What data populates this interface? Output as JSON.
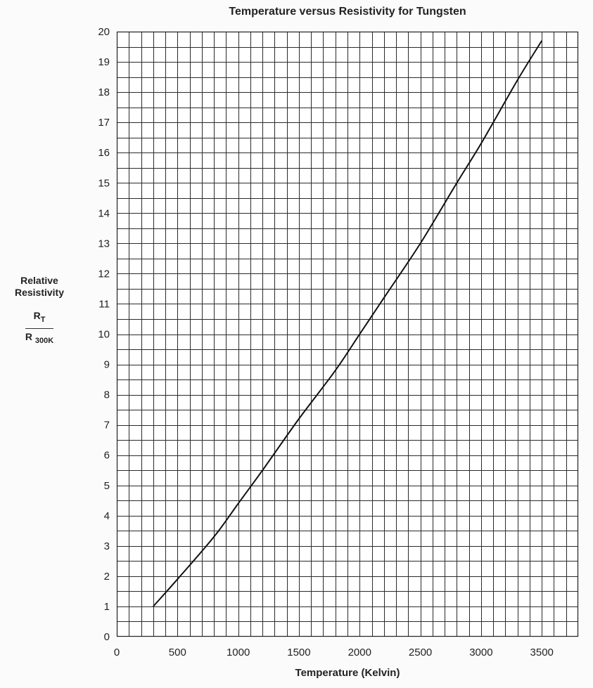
{
  "chart_data": {
    "type": "line",
    "title": "Temperature versus Resistivity for Tungsten",
    "xlabel": "Temperature (Kelvin)",
    "ylabel": {
      "line1": "Relative",
      "line2": "Resistivity",
      "numerator_main": "R",
      "numerator_sub": "T",
      "denominator_main": "R",
      "denominator_sub": "300K"
    },
    "xlim": [
      0,
      3800
    ],
    "ylim": [
      0,
      20
    ],
    "x_ticks": [
      0,
      500,
      1000,
      1500,
      2000,
      2500,
      3000,
      3500
    ],
    "y_ticks": [
      0,
      1,
      2,
      3,
      4,
      5,
      6,
      7,
      8,
      9,
      10,
      11,
      12,
      13,
      14,
      15,
      16,
      17,
      18,
      19,
      20
    ],
    "grid": true,
    "grid_x_step": 100,
    "grid_y_step": 0.5,
    "series": [
      {
        "x": [
          300,
          500,
          800,
          1000,
          1200,
          1500,
          1800,
          2000,
          2200,
          2500,
          2800,
          3000,
          3300,
          3500
        ],
        "y": [
          1.0,
          1.9,
          3.3,
          4.4,
          5.5,
          7.2,
          8.8,
          10.0,
          11.2,
          13.0,
          15.0,
          16.3,
          18.4,
          19.7
        ]
      }
    ]
  }
}
